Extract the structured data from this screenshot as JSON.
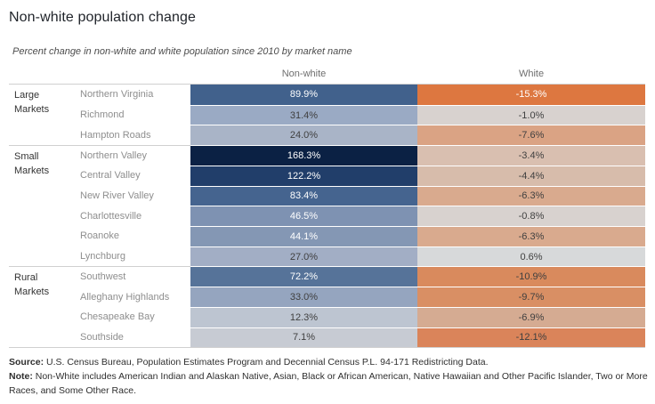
{
  "header": {
    "title": "Non-white population change",
    "subtitle": "Percent change in non-white and white population since 2010 by market name"
  },
  "footer": {
    "source_label": "Source:",
    "source_text": " U.S. Census Bureau, Population Estimates Program and Decennial Census P.L. 94-171 Redistricting Data.",
    "note_label": "Note:",
    "note_text": " Non-White includes American Indian and Alaskan Native, Asian, Black or African American, Native Hawaiian and Other Pacific Islander,  Two or More Races, and Some Other Race."
  },
  "colors": {
    "accent_blue_max": "#0b2144",
    "accent_orange_max": "#dd7740",
    "divider": "#d0d0d0",
    "label_grey": "#8e8e8e"
  },
  "chart_data": {
    "type": "heatmap",
    "title": "Non-white population change",
    "subtitle": "Percent change in non-white and white population since 2010 by market name",
    "unit": "percent change since 2010",
    "columns": [
      "Non-white",
      "White"
    ],
    "legend_position": "none",
    "groups": [
      {
        "label": "Large Markets",
        "markets": [
          {
            "name": "Northern Virginia",
            "nonwhite": 89.9,
            "nonwhite_label": "89.9%",
            "nonwhite_bg": "#41618c",
            "nonwhite_text": "light",
            "white": -15.3,
            "white_label": "-15.3%",
            "white_bg": "#dd7740",
            "white_text": "light"
          },
          {
            "name": "Richmond",
            "nonwhite": 31.4,
            "nonwhite_label": "31.4%",
            "nonwhite_bg": "#9aaac4",
            "nonwhite_text": "dark",
            "white": -1.0,
            "white_label": "-1.0%",
            "white_bg": "#d8d2cf",
            "white_text": "dark"
          },
          {
            "name": "Hampton Roads",
            "nonwhite": 24.0,
            "nonwhite_label": "24.0%",
            "nonwhite_bg": "#a9b4c7",
            "nonwhite_text": "dark",
            "white": -7.6,
            "white_label": "-7.6%",
            "white_bg": "#daa384",
            "white_text": "dark"
          }
        ]
      },
      {
        "label": "Small Markets",
        "markets": [
          {
            "name": "Northern Valley",
            "nonwhite": 168.3,
            "nonwhite_label": "168.3%",
            "nonwhite_bg": "#0b2144",
            "nonwhite_text": "light",
            "white": -3.4,
            "white_label": "-3.4%",
            "white_bg": "#d9bfb0",
            "white_text": "dark"
          },
          {
            "name": "Central Valley",
            "nonwhite": 122.2,
            "nonwhite_label": "122.2%",
            "nonwhite_bg": "#213e6a",
            "nonwhite_text": "light",
            "white": -4.4,
            "white_label": "-4.4%",
            "white_bg": "#d7bcab",
            "white_text": "dark"
          },
          {
            "name": "New River Valley",
            "nonwhite": 83.4,
            "nonwhite_label": "83.4%",
            "nonwhite_bg": "#45648f",
            "nonwhite_text": "light",
            "white": -6.3,
            "white_label": "-6.3%",
            "white_bg": "#d9aa8e",
            "white_text": "dark"
          },
          {
            "name": "Charlottesville",
            "nonwhite": 46.5,
            "nonwhite_label": "46.5%",
            "nonwhite_bg": "#7e92b2",
            "nonwhite_text": "light",
            "white": -0.8,
            "white_label": "-0.8%",
            "white_bg": "#d8d2cf",
            "white_text": "dark"
          },
          {
            "name": "Roanoke",
            "nonwhite": 44.1,
            "nonwhite_label": "44.1%",
            "nonwhite_bg": "#8497b4",
            "nonwhite_text": "light",
            "white": -6.3,
            "white_label": "-6.3%",
            "white_bg": "#d9aa8e",
            "white_text": "dark"
          },
          {
            "name": "Lynchburg",
            "nonwhite": 27.0,
            "nonwhite_label": "27.0%",
            "nonwhite_bg": "#a2aec5",
            "nonwhite_text": "dark",
            "white": 0.6,
            "white_label": "0.6%",
            "white_bg": "#d7d9da",
            "white_text": "dark"
          }
        ]
      },
      {
        "label": "Rural Markets",
        "markets": [
          {
            "name": "Southwest",
            "nonwhite": 72.2,
            "nonwhite_label": "72.2%",
            "nonwhite_bg": "#567399",
            "nonwhite_text": "light",
            "white": -10.9,
            "white_label": "-10.9%",
            "white_bg": "#d98a5d",
            "white_text": "dark"
          },
          {
            "name": "Alleghany Highlands",
            "nonwhite": 33.0,
            "nonwhite_label": "33.0%",
            "nonwhite_bg": "#95a5bf",
            "nonwhite_text": "dark",
            "white": -9.7,
            "white_label": "-9.7%",
            "white_bg": "#d98f64",
            "white_text": "dark"
          },
          {
            "name": "Chesapeake Bay",
            "nonwhite": 12.3,
            "nonwhite_label": "12.3%",
            "nonwhite_bg": "#bdc5d1",
            "nonwhite_text": "dark",
            "white": -6.9,
            "white_label": "-6.9%",
            "white_bg": "#d5ab92",
            "white_text": "dark"
          },
          {
            "name": "Southside",
            "nonwhite": 7.1,
            "nonwhite_label": "7.1%",
            "nonwhite_bg": "#c7cbd3",
            "nonwhite_text": "dark",
            "white": -12.1,
            "white_label": "-12.1%",
            "white_bg": "#da845a",
            "white_text": "dark"
          }
        ]
      }
    ]
  }
}
